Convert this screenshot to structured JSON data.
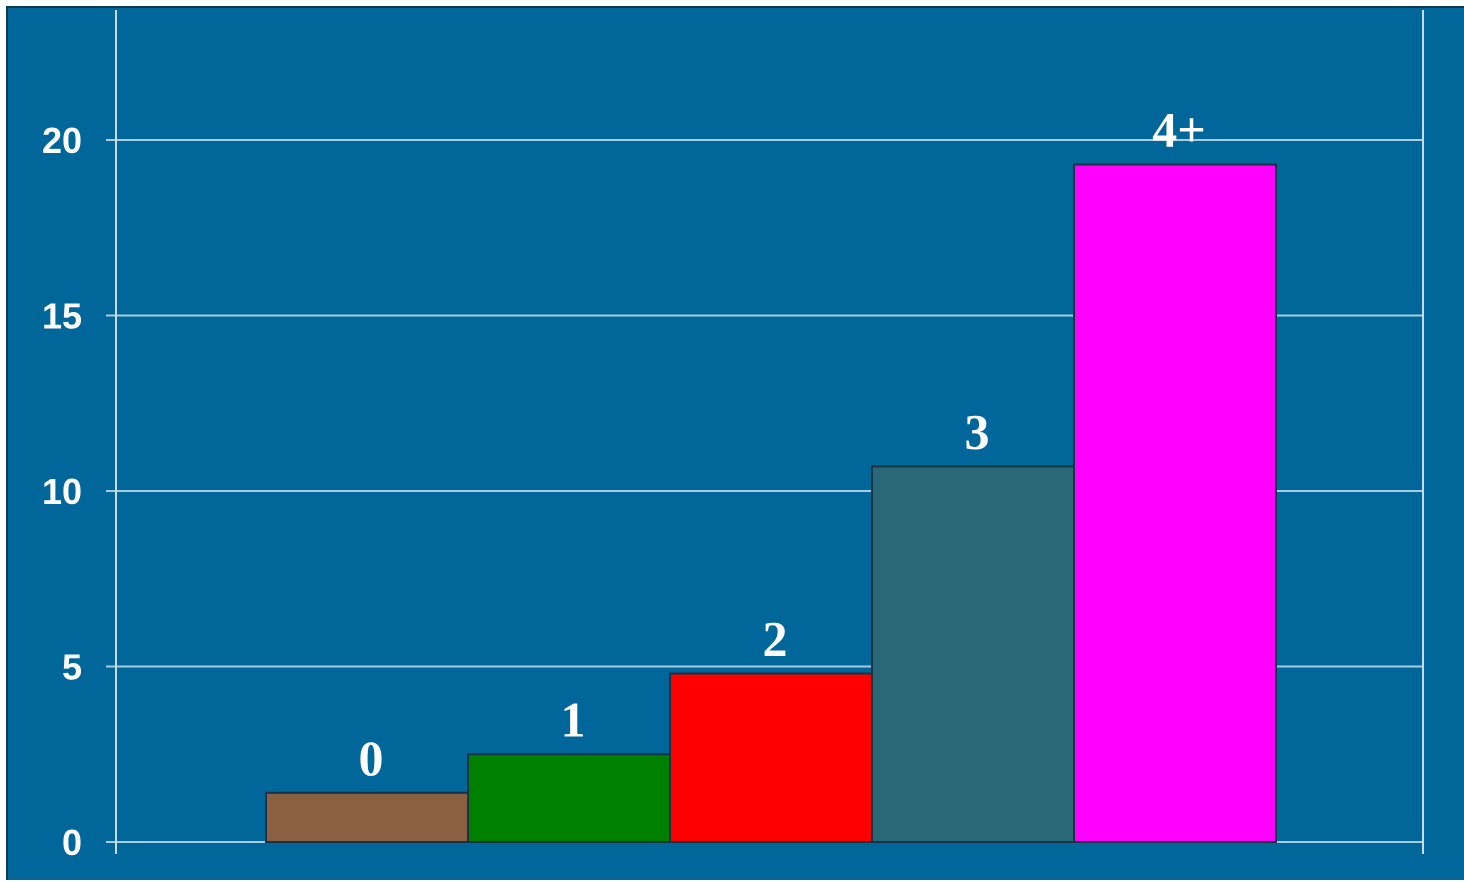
{
  "chart_data": {
    "type": "bar",
    "title": "",
    "xlabel": "",
    "ylabel": "",
    "categories": [
      "0",
      "1",
      "2",
      "3",
      "4+"
    ],
    "values": [
      1.4,
      2.5,
      4.8,
      10.7,
      19.3
    ],
    "colors": [
      "#8b6042",
      "#008000",
      "#ff0000",
      "#2a6878",
      "#ff00ff"
    ],
    "ylim": [
      0,
      23
    ],
    "yticks": [
      "0",
      "5",
      "10",
      "15",
      "20"
    ],
    "ytick_values": [
      0,
      5,
      10,
      15,
      20
    ],
    "grid": true,
    "legend": "none",
    "data_labels": "category above bar"
  },
  "style": {
    "background": "#01669a",
    "gridline": "#a9cce0",
    "text": "#ffffff"
  }
}
